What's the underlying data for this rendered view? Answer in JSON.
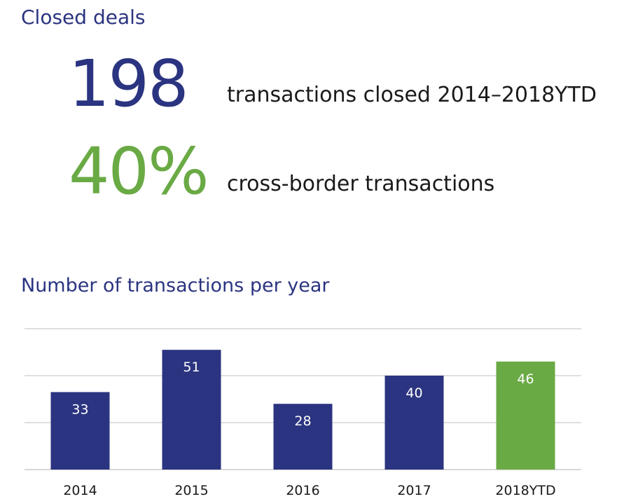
{
  "header": {
    "title": "Closed deals"
  },
  "stats": [
    {
      "value": "198",
      "label": "transactions closed 2014–2018YTD",
      "color": "#2b3480"
    },
    {
      "value": "40%",
      "label": "cross-border transactions",
      "color": "#6aaa45"
    }
  ],
  "chart_data": {
    "type": "bar",
    "title": "Number of transactions per year",
    "xlabel": "",
    "ylabel": "",
    "categories": [
      "2014",
      "2015",
      "2016",
      "2017",
      "2018YTD"
    ],
    "values": [
      33,
      51,
      28,
      40,
      46
    ],
    "colors": [
      "#2b3480",
      "#2b3480",
      "#2b3480",
      "#2b3480",
      "#6aaa45"
    ],
    "ylim": [
      0,
      60
    ],
    "gridlines": [
      0,
      20,
      40,
      60
    ],
    "grid": true,
    "legend": "none",
    "value_label_color": "#ffffff"
  }
}
